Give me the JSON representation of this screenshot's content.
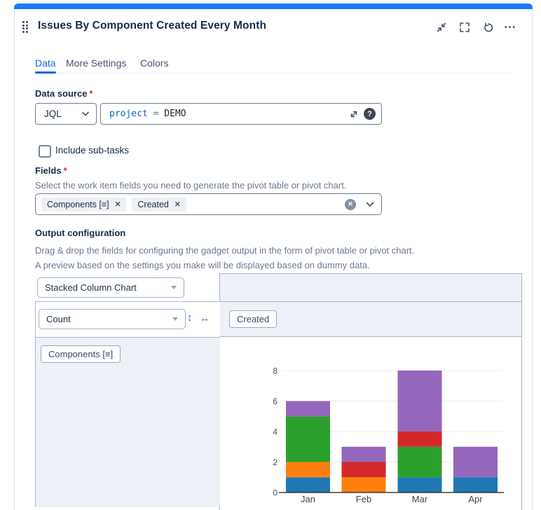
{
  "colors": {
    "accent_bar": "#1d7afc",
    "tab_active": "#0c66e4",
    "preview_bg": "#edf1f7",
    "panel_border": "#a6b4ca"
  },
  "icons": {
    "more": "⋯",
    "help": "?",
    "clear": "✕",
    "chip_remove": "✕",
    "arrow_updown": "↕",
    "arrow_leftright": "↔"
  },
  "header": {
    "title": "Issues By Component Created Every Month"
  },
  "tabs": [
    {
      "label": "Data",
      "active": true
    },
    {
      "label": "More Settings",
      "active": false
    },
    {
      "label": "Colors",
      "active": false
    }
  ],
  "data_source": {
    "label": "Data source",
    "required_mark": "*",
    "type_selected": "JQL",
    "query_field": "project",
    "query_operator": "=",
    "query_value": "DEMO"
  },
  "include_subtasks": {
    "label": "Include sub-tasks",
    "checked": false
  },
  "fields": {
    "label": "Fields",
    "required_mark": "*",
    "helper": "Select the work item fields you need to generate the pivot table or pivot chart.",
    "chips": [
      {
        "label": "Components [≡]"
      },
      {
        "label": "Created"
      }
    ]
  },
  "output": {
    "label": "Output configuration",
    "helper1": "Drag & drop the fields for configuring the gadget output in the form of pivot table or pivot chart.",
    "helper2": "A preview based on the settings you make will be displayed based on dummy data.",
    "chart_type_selected": "Stacked Column Chart",
    "measure_selected": "Count",
    "column_field": "Created",
    "row_field": "Components [≡]"
  },
  "chart_data": {
    "type": "bar",
    "stacked": true,
    "title": "",
    "xlabel": "",
    "ylabel": "",
    "categories": [
      "Jan",
      "Feb",
      "Mar",
      "Apr"
    ],
    "series": [
      {
        "color": "#1f77b4",
        "values": [
          1,
          0,
          1,
          1
        ]
      },
      {
        "color": "#ff7f0e",
        "values": [
          1,
          1,
          0,
          0
        ]
      },
      {
        "color": "#2ca02c",
        "values": [
          3,
          0,
          2,
          0
        ]
      },
      {
        "color": "#d62728",
        "values": [
          0,
          1,
          1,
          0
        ]
      },
      {
        "color": "#9467bd",
        "values": [
          1,
          1,
          4,
          2
        ]
      }
    ],
    "totals": [
      6,
      3,
      8,
      3
    ],
    "yticks": [
      0,
      2,
      4,
      6,
      8
    ],
    "gridline_values": [
      2,
      4,
      6,
      8
    ],
    "ylim": [
      0,
      8.8
    ],
    "grid": true,
    "legend_position": "none"
  }
}
